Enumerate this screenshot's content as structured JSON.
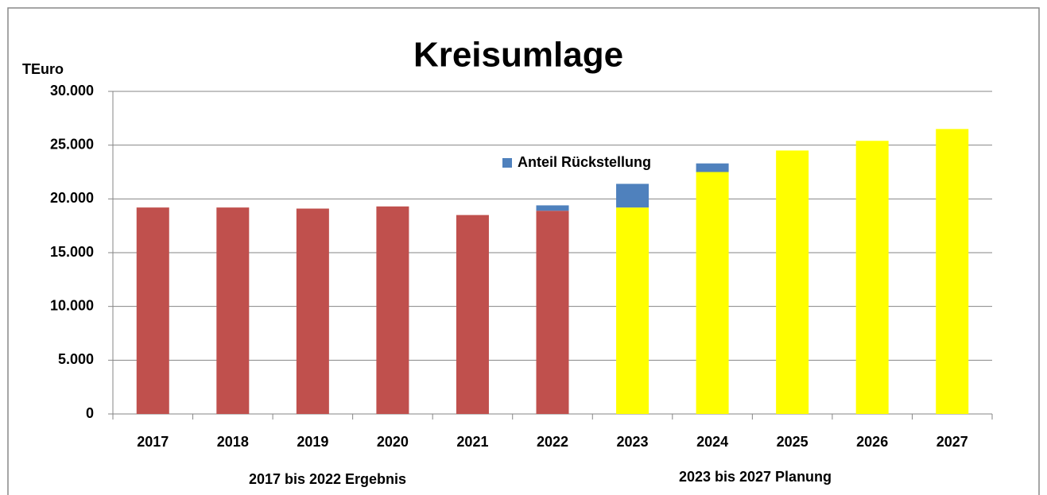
{
  "chart_data": {
    "type": "stacked_bar",
    "title": "Kreisumlage",
    "y_label": "TEuro",
    "categories": [
      "2017",
      "2018",
      "2019",
      "2020",
      "2021",
      "2022",
      "2023",
      "2024",
      "2025",
      "2026",
      "2027"
    ],
    "series": [
      {
        "colors": [
          "#c0504d",
          "#c0504d",
          "#c0504d",
          "#c0504d",
          "#c0504d",
          "#c0504d",
          "#ffff00",
          "#ffff00",
          "#ffff00",
          "#ffff00",
          "#ffff00"
        ],
        "values": [
          19200,
          19200,
          19100,
          19300,
          18500,
          18900,
          19200,
          22500,
          24500,
          25400,
          26500
        ]
      },
      {
        "name": "Anteil Rückstellung",
        "color": "#4f81bd",
        "values": [
          null,
          null,
          null,
          null,
          null,
          500,
          2200,
          800,
          null,
          null,
          null
        ]
      }
    ],
    "ylim": [
      0,
      30000
    ],
    "yticks": [
      0,
      {
        "value": 5000,
        "label": "5.000"
      },
      {
        "value": 10000,
        "label": "10.000"
      },
      {
        "value": 15000,
        "label": "15.000"
      },
      {
        "value": 20000,
        "label": "20.000"
      },
      {
        "value": 25000,
        "label": "25.000"
      },
      {
        "value": 30000,
        "label": "30.000"
      }
    ],
    "grid": true,
    "annotations": [
      "2017 bis 2022 Ergebnis",
      "2023 bis 2027 Planung"
    ]
  }
}
